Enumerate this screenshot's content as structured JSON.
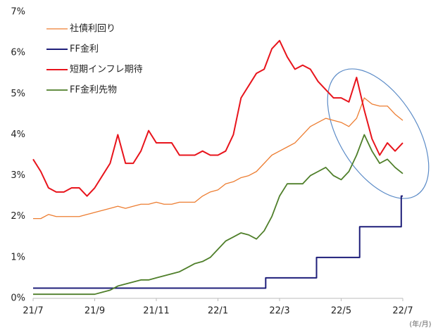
{
  "chart_data": {
    "type": "line",
    "x": [
      0,
      0.25,
      0.5,
      0.75,
      1,
      1.25,
      1.5,
      1.75,
      2,
      2.25,
      2.5,
      2.75,
      3,
      3.25,
      3.5,
      3.75,
      4,
      4.25,
      4.5,
      4.75,
      5,
      5.25,
      5.5,
      5.75,
      6,
      6.25,
      6.5,
      6.75,
      7,
      7.25,
      7.5,
      7.75,
      8,
      8.25,
      8.5,
      8.75,
      9,
      9.25,
      9.5,
      9.75,
      10,
      10.25,
      10.5,
      10.75,
      11,
      11.25,
      11.5,
      11.75,
      12
    ],
    "series": [
      {
        "name": "社債利回り",
        "color": "#ed7d31",
        "width": 1.3,
        "values": [
          1.95,
          1.95,
          2.05,
          2.0,
          2.0,
          2.0,
          2.0,
          2.05,
          2.1,
          2.15,
          2.2,
          2.25,
          2.2,
          2.25,
          2.3,
          2.3,
          2.35,
          2.3,
          2.3,
          2.35,
          2.35,
          2.35,
          2.5,
          2.6,
          2.65,
          2.8,
          2.85,
          2.95,
          3.0,
          3.1,
          3.3,
          3.5,
          3.6,
          3.7,
          3.8,
          4.0,
          4.2,
          4.3,
          4.4,
          4.35,
          4.3,
          4.2,
          4.4,
          4.9,
          4.75,
          4.7,
          4.7,
          4.5,
          4.35
        ]
      },
      {
        "name": "FF金利",
        "color": "#1f1f7a",
        "width": 2,
        "x": [
          0,
          7.55,
          7.55,
          9.2,
          9.2,
          10.6,
          10.6,
          11.95,
          11.95,
          12
        ],
        "values": [
          0.25,
          0.25,
          0.5,
          0.5,
          1,
          1,
          1.75,
          1.75,
          2.5,
          2.5
        ]
      },
      {
        "name": "短期インフレ期待",
        "color": "#e8141c",
        "width": 2,
        "values": [
          3.4,
          3.1,
          2.7,
          2.6,
          2.6,
          2.7,
          2.7,
          2.5,
          2.7,
          3.0,
          3.3,
          4.0,
          3.3,
          3.3,
          3.6,
          4.1,
          3.8,
          3.8,
          3.8,
          3.5,
          3.5,
          3.5,
          3.6,
          3.5,
          3.5,
          3.6,
          4.0,
          4.9,
          5.2,
          5.5,
          5.6,
          6.1,
          6.3,
          5.9,
          5.6,
          5.7,
          5.6,
          5.3,
          5.1,
          4.9,
          4.9,
          4.8,
          5.4,
          4.6,
          3.9,
          3.5,
          3.8,
          3.6,
          3.8
        ]
      },
      {
        "name": "FF金利先物",
        "color": "#4f7f2a",
        "width": 1.8,
        "values": [
          0.1,
          0.1,
          0.1,
          0.1,
          0.1,
          0.1,
          0.1,
          0.1,
          0.1,
          0.15,
          0.2,
          0.3,
          0.35,
          0.4,
          0.45,
          0.45,
          0.5,
          0.55,
          0.6,
          0.65,
          0.75,
          0.85,
          0.9,
          1.0,
          1.2,
          1.4,
          1.5,
          1.6,
          1.55,
          1.45,
          1.65,
          2.0,
          2.5,
          2.8,
          2.8,
          2.8,
          3.0,
          3.1,
          3.2,
          3.0,
          2.9,
          3.1,
          3.5,
          4.0,
          3.6,
          3.3,
          3.4,
          3.2,
          3.05
        ]
      }
    ],
    "xlim": [
      0,
      12
    ],
    "xticks": [
      {
        "value": 0,
        "label": "21/7"
      },
      {
        "value": 2,
        "label": "21/9"
      },
      {
        "value": 4,
        "label": "21/11"
      },
      {
        "value": 6,
        "label": "22/1"
      },
      {
        "value": 8,
        "label": "22/3"
      },
      {
        "value": 10,
        "label": "22/5"
      },
      {
        "value": 12,
        "label": "22/7"
      }
    ],
    "ylim": [
      0,
      7
    ],
    "yticks": [
      {
        "value": 0,
        "label": "0%"
      },
      {
        "value": 1,
        "label": "1%"
      },
      {
        "value": 2,
        "label": "2%"
      },
      {
        "value": 3,
        "label": "3%"
      },
      {
        "value": 4,
        "label": "4%"
      },
      {
        "value": 5,
        "label": "5%"
      },
      {
        "value": 6,
        "label": "6%"
      },
      {
        "value": 7,
        "label": "7%"
      }
    ],
    "xlabel": "(年/月)",
    "grid": false,
    "legend": "upper left"
  }
}
